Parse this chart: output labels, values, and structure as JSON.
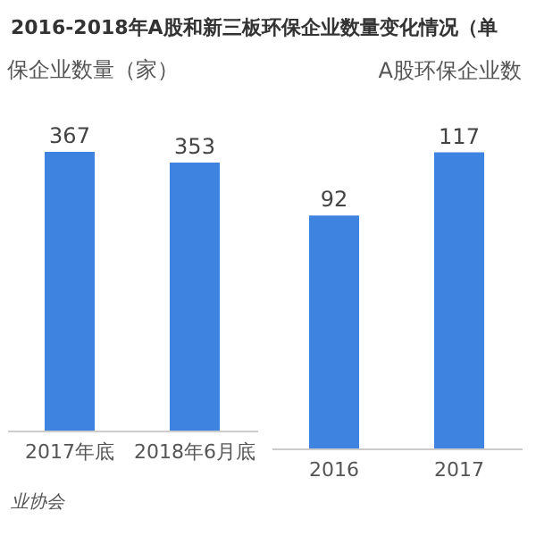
{
  "chart_data": [
    {
      "type": "bar",
      "title": "2016-2018年A股和新三板环保企业数量变化情况（单",
      "subtitle": "保企业数量（家）",
      "annotations": [
        "业协会"
      ],
      "categories": [
        "2017年底",
        "2018年6月底"
      ],
      "values": [
        367,
        353
      ],
      "color": "#3f83e0",
      "data_labels": true,
      "tick_labels": "x",
      "grid": false
    },
    {
      "type": "bar",
      "title": "A股环保企业数",
      "categories": [
        "2016",
        "2017"
      ],
      "values": [
        92,
        117
      ],
      "color": "#3f83e0",
      "data_labels": true,
      "tick_labels": "x",
      "grid": false
    }
  ]
}
